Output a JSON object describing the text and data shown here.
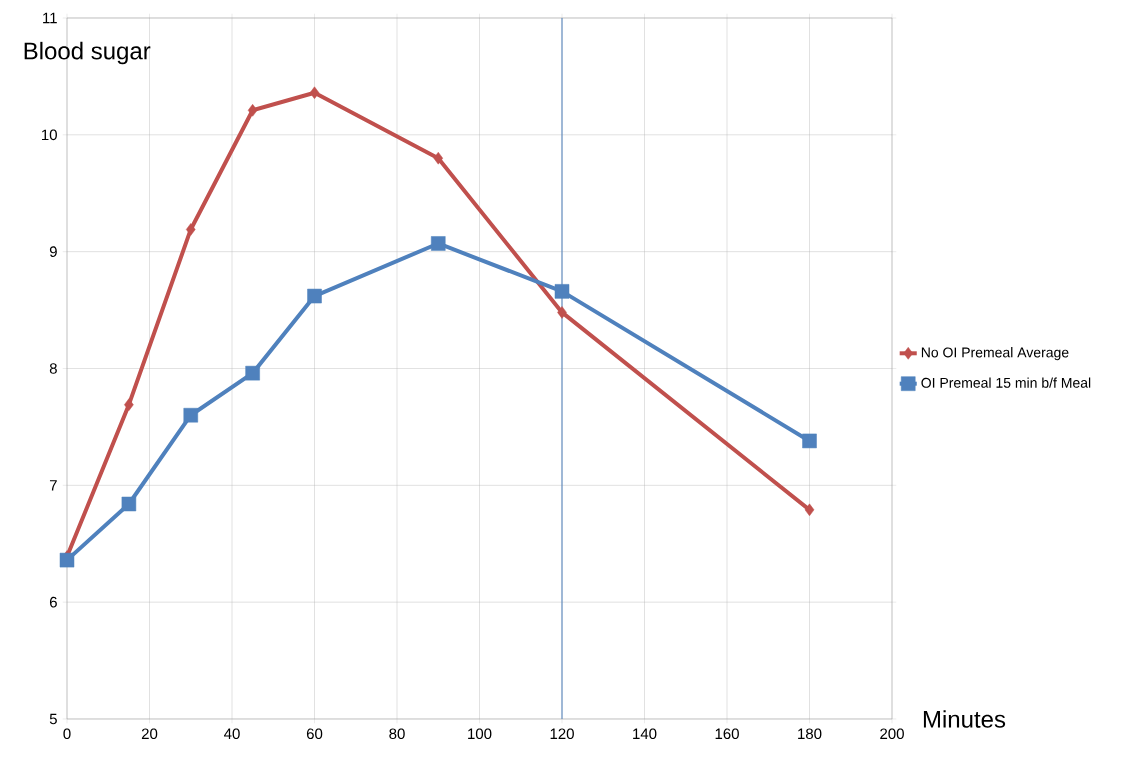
{
  "chart_data": {
    "type": "line",
    "xlabel": "Minutes",
    "ylabel": "Blood sugar",
    "x": [
      0,
      15,
      30,
      45,
      60,
      90,
      120,
      180
    ],
    "series": [
      {
        "name": "No OI Premeal Average",
        "color": "#c0504d",
        "marker": "diamond",
        "values": [
          6.39,
          7.69,
          9.19,
          10.21,
          10.36,
          9.8,
          8.48,
          6.79
        ]
      },
      {
        "name": "OI Premeal 15 min b/f Meal",
        "color": "#4f81bd",
        "marker": "square",
        "values": [
          6.36,
          6.84,
          7.6,
          7.96,
          8.62,
          9.07,
          8.66,
          7.38
        ]
      }
    ],
    "xlim": [
      0,
      200
    ],
    "xticks": [
      0,
      20,
      40,
      60,
      80,
      100,
      120,
      140,
      160,
      180,
      200
    ],
    "ylim": [
      5,
      11
    ],
    "yticks": [
      5,
      6,
      7,
      8,
      9,
      10,
      11
    ],
    "ref_lines": [
      {
        "axis": "x",
        "value": 120,
        "color": "#4f81bd"
      }
    ],
    "grid": true,
    "legend": "right"
  }
}
